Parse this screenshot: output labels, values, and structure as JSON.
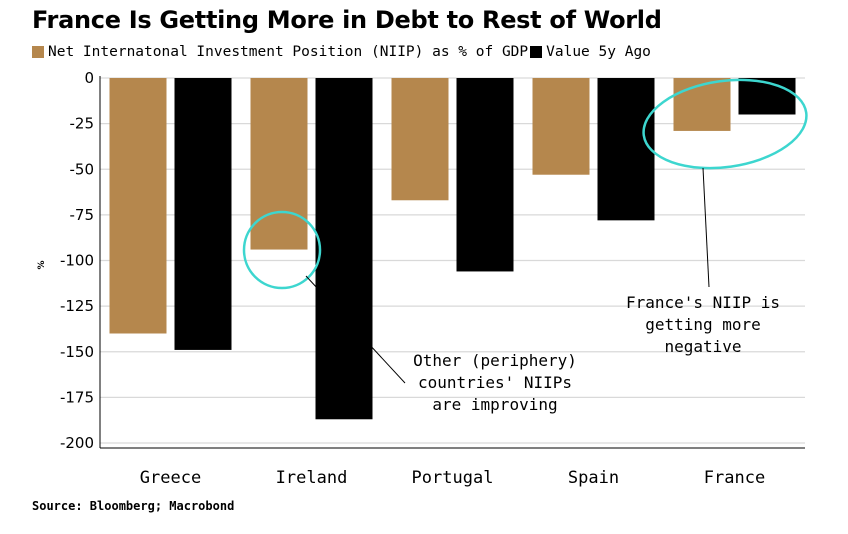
{
  "title": "France Is Getting More in Debt to Rest of World",
  "source": "Source: Bloomberg; Macrobond",
  "colors": {
    "current": "#b5874d",
    "five_years_ago": "#000000",
    "highlight": "#3dd6cf",
    "grid": "#d9d9d9"
  },
  "chart_data": {
    "type": "bar",
    "title": "France Is Getting More in Debt to Rest of World",
    "ylabel": "%",
    "ylim": [
      -200,
      0
    ],
    "yticks": [
      0,
      -25,
      -50,
      -75,
      -100,
      -125,
      -150,
      -175,
      -200
    ],
    "ytick_labels": [
      "0",
      "-25",
      "-50",
      "-75",
      "-100",
      "-125",
      "-150",
      "-175",
      "-200"
    ],
    "grid": true,
    "legend_position": "top-left",
    "categories": [
      "Greece",
      "Ireland",
      "Portugal",
      "Spain",
      "France"
    ],
    "series": [
      {
        "name": "Net Internatonal Investment Position (NIIP) as % of GDP",
        "values": [
          -140,
          -94,
          -67,
          -53,
          -29
        ]
      },
      {
        "name": "Value 5y Ago",
        "values": [
          -149,
          -187,
          -106,
          -78,
          -20
        ]
      }
    ],
    "annotations": [
      {
        "lines": [
          "Other (periphery)",
          "countries' NIIPs",
          "are improving"
        ]
      },
      {
        "lines": [
          "France's NIIP is",
          "getting more",
          "negative"
        ]
      }
    ]
  }
}
